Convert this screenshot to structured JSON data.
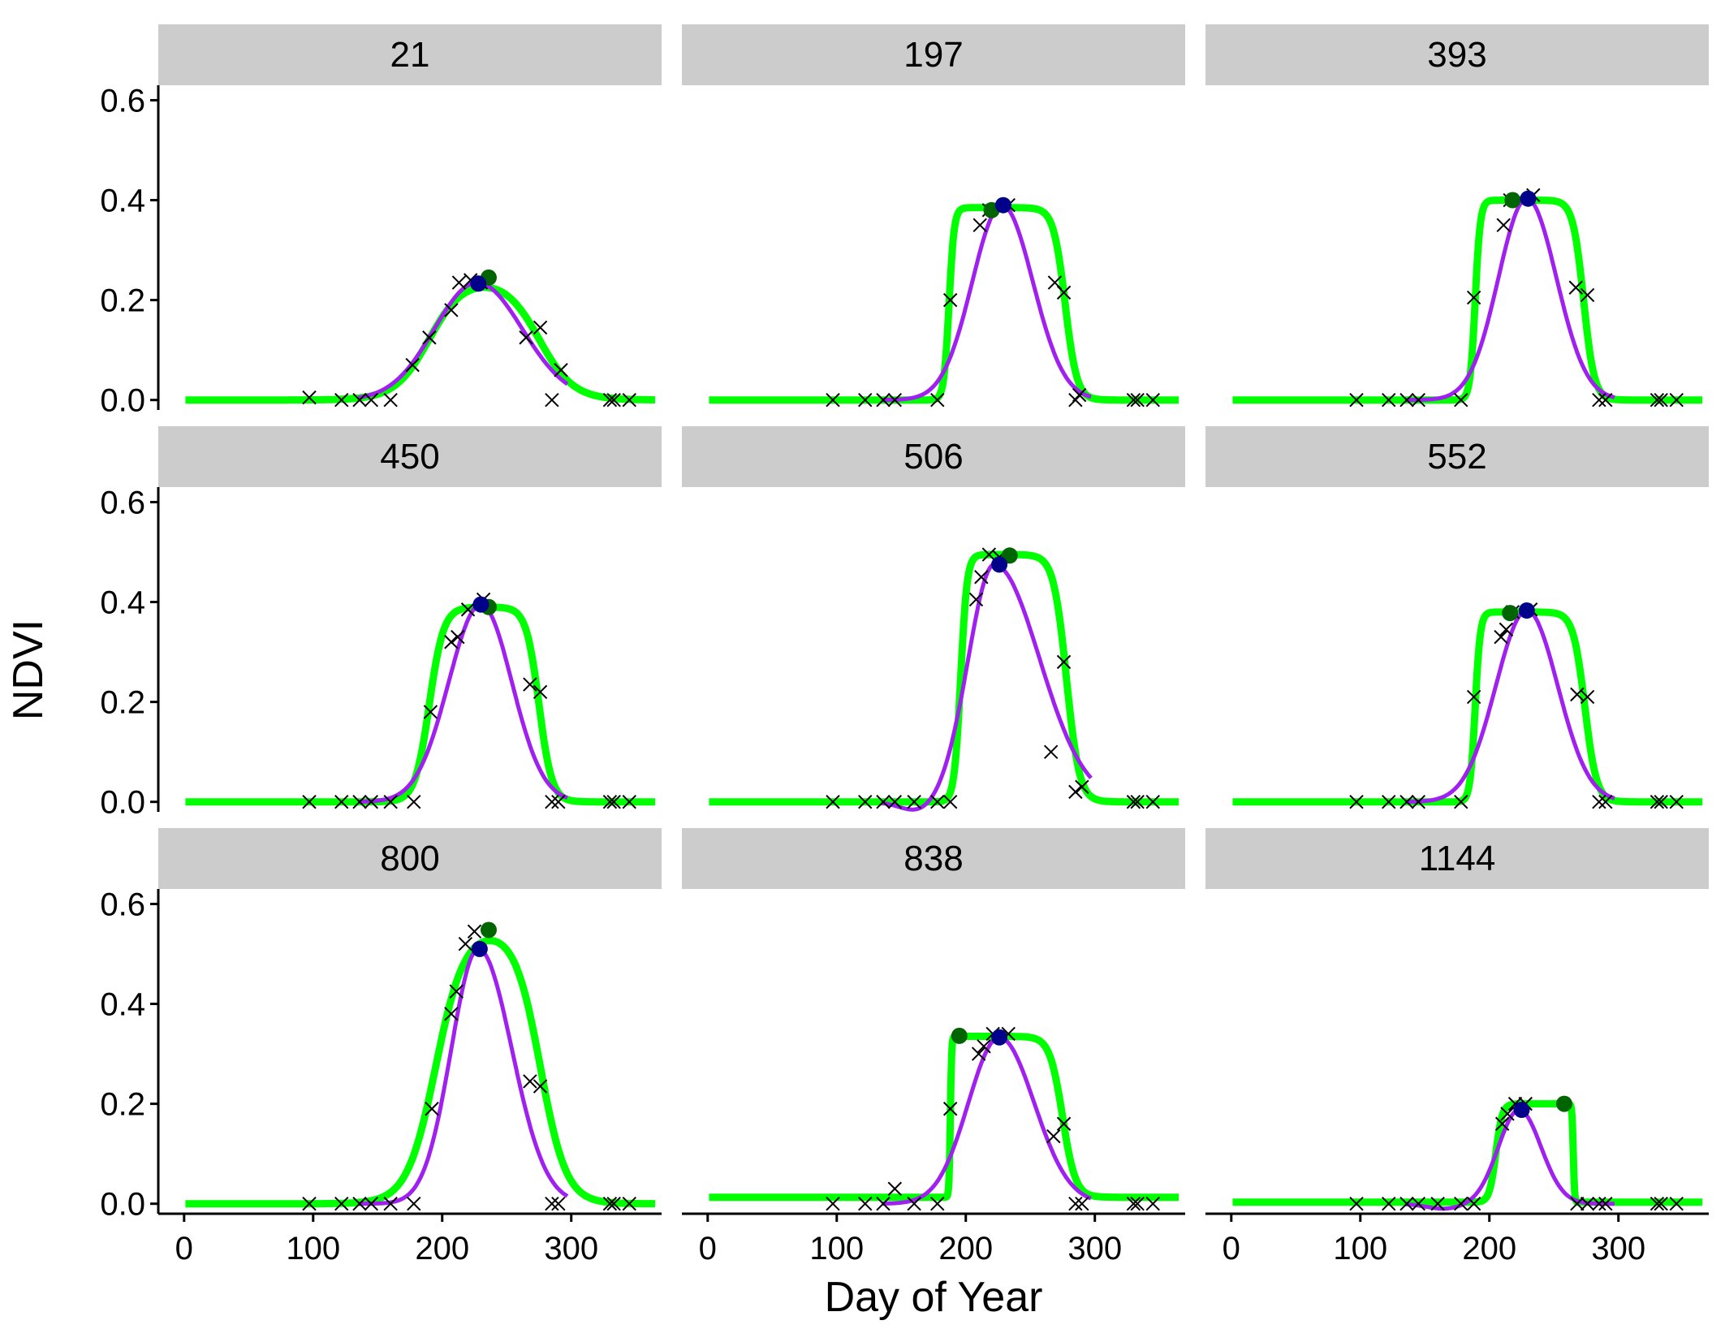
{
  "chart_data": {
    "type": "line",
    "xlabel": "Day of Year",
    "ylabel": "NDVI",
    "xlim": [
      -20,
      370
    ],
    "ylim": [
      -0.02,
      0.63
    ],
    "xticks": [
      0,
      100,
      200,
      300
    ],
    "yticks": [
      0.0,
      0.2,
      0.4,
      0.6
    ],
    "xtick_labels": [
      "0",
      "100",
      "200",
      "300"
    ],
    "ytick_labels": [
      "0.0",
      "0.2",
      "0.4",
      "0.6"
    ],
    "grid": false,
    "colors": {
      "green_curve": "#00ff00",
      "purple_curve": "#a020f0",
      "green_point": "#006400",
      "blue_point": "#00008b",
      "observation": "#000000",
      "strip": "#cccccc"
    },
    "panels": [
      {
        "label": "21",
        "green": {
          "base": 0.0,
          "amp": 0.245,
          "sos": 190,
          "rsp": 0.075,
          "eos": 275,
          "rau": 0.075
        },
        "purple": {
          "base": 0.0,
          "amp": 0.235,
          "mu": 227,
          "sigma_l": 33,
          "sigma_r": 35,
          "dip": 0.0
        },
        "green_peak": [
          236,
          0.245
        ],
        "blue_peak": [
          228,
          0.233
        ],
        "observations": [
          [
            97,
            0.005
          ],
          [
            122,
            0.0
          ],
          [
            136,
            0.0
          ],
          [
            145,
            0.0
          ],
          [
            160,
            0.0
          ],
          [
            177,
            0.07
          ],
          [
            190,
            0.125
          ],
          [
            207,
            0.18
          ],
          [
            213,
            0.235
          ],
          [
            222,
            0.24
          ],
          [
            230,
            0.235
          ],
          [
            265,
            0.125
          ],
          [
            276,
            0.145
          ],
          [
            285,
            0.0
          ],
          [
            292,
            0.06
          ],
          [
            330,
            0.0
          ],
          [
            333,
            0.0
          ],
          [
            345,
            0.0
          ]
        ]
      },
      {
        "label": "197",
        "green": {
          "base": 0.0,
          "amp": 0.385,
          "sos": 187,
          "rsp": 0.5,
          "eos": 277,
          "rau": 0.22
        },
        "purple": {
          "base": 0.0,
          "amp": 0.39,
          "mu": 228,
          "sigma_l": 23,
          "sigma_r": 24,
          "dip": 0.0
        },
        "green_peak": [
          220,
          0.38
        ],
        "blue_point_note": "",
        "blue_peak": [
          229,
          0.39
        ],
        "observations": [
          [
            97,
            0.0
          ],
          [
            122,
            0.0
          ],
          [
            136,
            0.0
          ],
          [
            145,
            0.0
          ],
          [
            178,
            0.0
          ],
          [
            188,
            0.2
          ],
          [
            211,
            0.35
          ],
          [
            218,
            0.38
          ],
          [
            233,
            0.39
          ],
          [
            269,
            0.235
          ],
          [
            276,
            0.215
          ],
          [
            285,
            0.0
          ],
          [
            288,
            0.01
          ],
          [
            330,
            0.0
          ],
          [
            333,
            0.0
          ],
          [
            345,
            0.0
          ]
        ]
      },
      {
        "label": "393",
        "green": {
          "base": 0.0,
          "amp": 0.4,
          "sos": 189,
          "rsp": 0.5,
          "eos": 273,
          "rau": 0.24
        },
        "purple": {
          "base": 0.0,
          "amp": 0.403,
          "mu": 229,
          "sigma_l": 22,
          "sigma_r": 23,
          "dip": 0.0
        },
        "green_peak": [
          218,
          0.4
        ],
        "blue_peak": [
          230,
          0.403
        ],
        "observations": [
          [
            97,
            0.0
          ],
          [
            122,
            0.0
          ],
          [
            136,
            0.0
          ],
          [
            145,
            0.0
          ],
          [
            178,
            0.0
          ],
          [
            188,
            0.205
          ],
          [
            211,
            0.35
          ],
          [
            216,
            0.4
          ],
          [
            234,
            0.41
          ],
          [
            267,
            0.225
          ],
          [
            276,
            0.21
          ],
          [
            285,
            0.0
          ],
          [
            290,
            0.0
          ],
          [
            330,
            0.0
          ],
          [
            333,
            0.0
          ],
          [
            345,
            0.0
          ]
        ]
      },
      {
        "label": "450",
        "green": {
          "base": 0.0,
          "amp": 0.39,
          "sos": 190,
          "rsp": 0.18,
          "eos": 275,
          "rau": 0.2
        },
        "purple": {
          "base": 0.0,
          "amp": 0.395,
          "mu": 230,
          "sigma_l": 25,
          "sigma_r": 24,
          "dip": 0.0
        },
        "green_peak": [
          236,
          0.39
        ],
        "blue_peak": [
          230,
          0.395
        ],
        "observations": [
          [
            97,
            0.0
          ],
          [
            122,
            0.0
          ],
          [
            136,
            0.0
          ],
          [
            145,
            0.0
          ],
          [
            160,
            0.0
          ],
          [
            178,
            0.0
          ],
          [
            191,
            0.18
          ],
          [
            207,
            0.32
          ],
          [
            212,
            0.33
          ],
          [
            220,
            0.385
          ],
          [
            232,
            0.405
          ],
          [
            268,
            0.235
          ],
          [
            276,
            0.22
          ],
          [
            285,
            0.0
          ],
          [
            290,
            0.0
          ],
          [
            330,
            0.0
          ],
          [
            333,
            0.0
          ],
          [
            345,
            0.0
          ]
        ]
      },
      {
        "label": "506",
        "green": {
          "base": 0.0,
          "amp": 0.495,
          "sos": 196,
          "rsp": 0.4,
          "eos": 278,
          "rau": 0.2
        },
        "purple": {
          "base": 0.0,
          "amp": 0.475,
          "mu": 222,
          "sigma_l": 20,
          "sigma_r": 35,
          "dip": -0.02
        },
        "green_peak": [
          234,
          0.493
        ],
        "blue_peak": [
          226,
          0.475
        ],
        "observations": [
          [
            97,
            0.0
          ],
          [
            122,
            0.0
          ],
          [
            136,
            0.0
          ],
          [
            145,
            0.0
          ],
          [
            160,
            0.0
          ],
          [
            178,
            0.0
          ],
          [
            188,
            0.0
          ],
          [
            208,
            0.405
          ],
          [
            212,
            0.45
          ],
          [
            218,
            0.495
          ],
          [
            226,
            0.49
          ],
          [
            266,
            0.1
          ],
          [
            276,
            0.28
          ],
          [
            285,
            0.02
          ],
          [
            290,
            0.03
          ],
          [
            330,
            0.0
          ],
          [
            333,
            0.0
          ],
          [
            345,
            0.0
          ]
        ]
      },
      {
        "label": "552",
        "green": {
          "base": 0.0,
          "amp": 0.38,
          "sos": 189,
          "rsp": 0.5,
          "eos": 274,
          "rau": 0.22
        },
        "purple": {
          "base": 0.0,
          "amp": 0.383,
          "mu": 229,
          "sigma_l": 24,
          "sigma_r": 24,
          "dip": 0.0
        },
        "green_peak": [
          216,
          0.378
        ],
        "blue_peak": [
          229,
          0.383
        ],
        "observations": [
          [
            97,
            0.0
          ],
          [
            122,
            0.0
          ],
          [
            136,
            0.0
          ],
          [
            145,
            0.0
          ],
          [
            178,
            0.0
          ],
          [
            188,
            0.21
          ],
          [
            209,
            0.33
          ],
          [
            213,
            0.345
          ],
          [
            218,
            0.38
          ],
          [
            232,
            0.385
          ],
          [
            268,
            0.215
          ],
          [
            276,
            0.21
          ],
          [
            285,
            0.0
          ],
          [
            290,
            0.0
          ],
          [
            330,
            0.0
          ],
          [
            333,
            0.0
          ],
          [
            345,
            0.0
          ]
        ]
      },
      {
        "label": "800",
        "green": {
          "base": 0.0,
          "amp": 0.55,
          "sos": 195,
          "rsp": 0.09,
          "eos": 276,
          "rau": 0.1
        },
        "purple": {
          "base": 0.0,
          "amp": 0.51,
          "mu": 228,
          "sigma_l": 21,
          "sigma_r": 26,
          "dip": 0.0
        },
        "green_peak": [
          236,
          0.548
        ],
        "blue_peak": [
          229,
          0.51
        ],
        "observations": [
          [
            97,
            0.0
          ],
          [
            122,
            0.0
          ],
          [
            136,
            0.0
          ],
          [
            145,
            0.0
          ],
          [
            160,
            0.0
          ],
          [
            178,
            0.0
          ],
          [
            192,
            0.19
          ],
          [
            207,
            0.38
          ],
          [
            211,
            0.425
          ],
          [
            218,
            0.52
          ],
          [
            225,
            0.545
          ],
          [
            268,
            0.245
          ],
          [
            276,
            0.235
          ],
          [
            285,
            0.0
          ],
          [
            290,
            0.0
          ],
          [
            330,
            0.0
          ],
          [
            333,
            0.0
          ],
          [
            345,
            0.0
          ]
        ]
      },
      {
        "label": "838",
        "green": {
          "base": 0.013,
          "amp": 0.322,
          "sos": 188,
          "rsp": 2.0,
          "eos": 275,
          "rau": 0.2
        },
        "purple": {
          "base": 0.0,
          "amp": 0.333,
          "mu": 226,
          "sigma_l": 24,
          "sigma_r": 27,
          "dip": 0.0
        },
        "green_peak": [
          195,
          0.336
        ],
        "blue_peak": [
          226,
          0.333
        ],
        "observations": [
          [
            97,
            0.0
          ],
          [
            122,
            0.0
          ],
          [
            136,
            0.0
          ],
          [
            145,
            0.03
          ],
          [
            160,
            0.0
          ],
          [
            178,
            0.0
          ],
          [
            188,
            0.19
          ],
          [
            210,
            0.3
          ],
          [
            214,
            0.315
          ],
          [
            221,
            0.34
          ],
          [
            233,
            0.34
          ],
          [
            268,
            0.135
          ],
          [
            276,
            0.16
          ],
          [
            285,
            0.0
          ],
          [
            290,
            0.0
          ],
          [
            330,
            0.0
          ],
          [
            333,
            0.0
          ],
          [
            345,
            0.0
          ]
        ]
      },
      {
        "label": "1144",
        "green": {
          "base": 0.003,
          "amp": 0.197,
          "sos": 205,
          "rsp": 0.4,
          "eos": 265,
          "rau": 2.0
        },
        "purple": {
          "base": 0.0,
          "amp": 0.188,
          "mu": 223,
          "sigma_l": 16,
          "sigma_r": 17,
          "dip": -0.01
        },
        "green_peak": [
          258,
          0.2
        ],
        "blue_peak": [
          225,
          0.188
        ],
        "observations": [
          [
            97,
            0.0
          ],
          [
            122,
            0.0
          ],
          [
            136,
            0.0
          ],
          [
            145,
            0.0
          ],
          [
            160,
            0.0
          ],
          [
            178,
            0.0
          ],
          [
            188,
            0.0
          ],
          [
            210,
            0.16
          ],
          [
            214,
            0.18
          ],
          [
            220,
            0.2
          ],
          [
            228,
            0.2
          ],
          [
            268,
            0.0
          ],
          [
            276,
            0.0
          ],
          [
            285,
            0.0
          ],
          [
            290,
            0.0
          ],
          [
            330,
            0.0
          ],
          [
            333,
            0.0
          ],
          [
            345,
            0.0
          ]
        ]
      }
    ]
  }
}
